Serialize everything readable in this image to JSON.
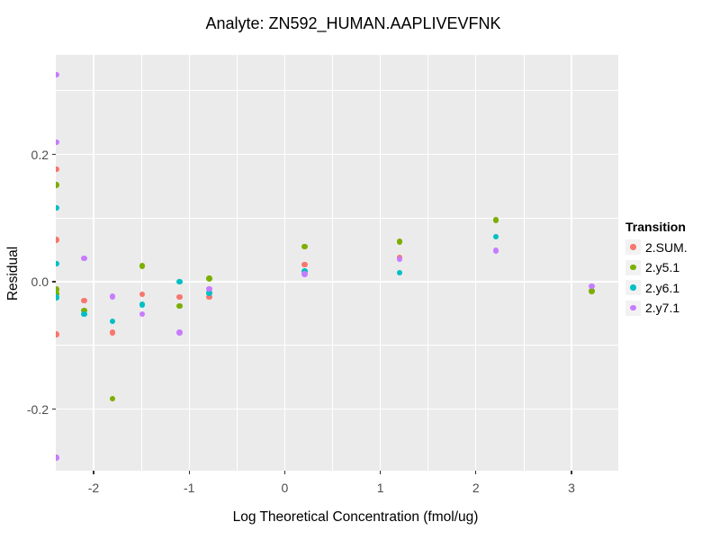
{
  "title": "Analyte: ZN592_HUMAN.AAPLIVEVFNK",
  "chart_data": {
    "type": "scatter",
    "title": "Analyte: ZN592_HUMAN.AAPLIVEVFNK",
    "xlabel": "Log Theoretical Concentration (fmol/ug)",
    "ylabel": "Residual",
    "xlim": [
      -2.4,
      3.49
    ],
    "ylim": [
      -0.296,
      0.356
    ],
    "grid": "white major and minor gridlines on gray panel",
    "panel_color": "#EBEBEB",
    "gridline_color": "#FFFFFF",
    "tick_label_color": "#4D4D4D",
    "x_ticks": [
      {
        "v": -2,
        "label": "-2"
      },
      {
        "v": -1,
        "label": "-1"
      },
      {
        "v": 0,
        "label": "0"
      },
      {
        "v": 1,
        "label": "1"
      },
      {
        "v": 2,
        "label": "2"
      },
      {
        "v": 3,
        "label": "3"
      }
    ],
    "y_ticks": [
      {
        "v": 0.2,
        "label": "0.2"
      },
      {
        "v": 0.0,
        "label": "0.0"
      },
      {
        "v": -0.2,
        "label": "-0.2"
      }
    ],
    "x_minor_gridlines": [
      -1.5,
      -0.5,
      0.5,
      1.5,
      2.5
    ],
    "y_minor_gridlines": [
      0.3,
      0.1,
      -0.1
    ],
    "legend": {
      "title": "Transition",
      "position": "right"
    },
    "series": [
      {
        "name": "2.SUM.",
        "color": "#F8766D",
        "points": [
          [
            -2.39,
            0.177
          ],
          [
            -2.39,
            0.066
          ],
          [
            -2.39,
            -0.083
          ],
          [
            -2.1,
            -0.03
          ],
          [
            -1.8,
            -0.08
          ],
          [
            -1.49,
            -0.02
          ],
          [
            -1.1,
            -0.024
          ],
          [
            -0.79,
            -0.024
          ],
          [
            0.21,
            0.027
          ],
          [
            1.2,
            0.038
          ]
        ]
      },
      {
        "name": "2.y5.1",
        "color": "#7CAE00",
        "points": [
          [
            -2.39,
            0.152
          ],
          [
            -2.39,
            -0.012
          ],
          [
            -2.39,
            -0.019
          ],
          [
            -2.1,
            -0.045
          ],
          [
            -1.8,
            -0.184
          ],
          [
            -1.49,
            0.025
          ],
          [
            -1.1,
            -0.038
          ],
          [
            -0.79,
            0.005
          ],
          [
            0.21,
            0.055
          ],
          [
            1.2,
            0.063
          ],
          [
            2.21,
            0.097
          ],
          [
            3.21,
            -0.015
          ]
        ]
      },
      {
        "name": "2.y6.1",
        "color": "#00BFC4",
        "points": [
          [
            -2.39,
            0.116
          ],
          [
            -2.39,
            0.028
          ],
          [
            -2.39,
            -0.025
          ],
          [
            -2.1,
            -0.051
          ],
          [
            -1.8,
            -0.062
          ],
          [
            -1.49,
            -0.036
          ],
          [
            -1.1,
            0.0
          ],
          [
            -0.79,
            -0.018
          ],
          [
            0.21,
            0.016
          ],
          [
            1.2,
            0.014
          ],
          [
            2.21,
            0.071
          ]
        ]
      },
      {
        "name": "2.y7.1",
        "color": "#C77CFF",
        "points": [
          [
            -2.39,
            0.325
          ],
          [
            -2.39,
            0.219
          ],
          [
            -2.39,
            -0.276
          ],
          [
            -2.1,
            0.037
          ],
          [
            -1.8,
            -0.023
          ],
          [
            -1.49,
            -0.051
          ],
          [
            -1.1,
            -0.08
          ],
          [
            -0.79,
            -0.011
          ],
          [
            0.21,
            0.012
          ],
          [
            1.2,
            0.035
          ],
          [
            2.21,
            0.049
          ],
          [
            3.21,
            -0.007
          ]
        ]
      }
    ]
  }
}
